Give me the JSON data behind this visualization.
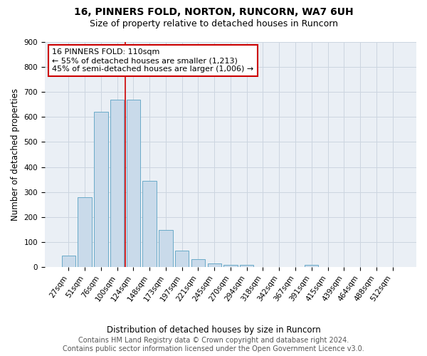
{
  "title": "16, PINNERS FOLD, NORTON, RUNCORN, WA7 6UH",
  "subtitle": "Size of property relative to detached houses in Runcorn",
  "xlabel": "Distribution of detached houses by size in Runcorn",
  "ylabel": "Number of detached properties",
  "footer_line1": "Contains HM Land Registry data © Crown copyright and database right 2024.",
  "footer_line2": "Contains public sector information licensed under the Open Government Licence v3.0.",
  "categories": [
    "27sqm",
    "51sqm",
    "76sqm",
    "100sqm",
    "124sqm",
    "148sqm",
    "173sqm",
    "197sqm",
    "221sqm",
    "245sqm",
    "270sqm",
    "294sqm",
    "318sqm",
    "342sqm",
    "367sqm",
    "391sqm",
    "415sqm",
    "439sqm",
    "464sqm",
    "488sqm",
    "512sqm"
  ],
  "values": [
    45,
    280,
    620,
    670,
    670,
    345,
    148,
    65,
    32,
    15,
    10,
    10,
    0,
    0,
    0,
    10,
    0,
    0,
    0,
    0,
    0
  ],
  "bar_color": "#c9daea",
  "bar_edge_color": "#6aaac8",
  "grid_color": "#ccd5e0",
  "background_color": "#eaeff5",
  "vline_x_index": 3.5,
  "vline_color": "#cc0000",
  "annotation_line1": "16 PINNERS FOLD: 110sqm",
  "annotation_line2": "← 55% of detached houses are smaller (1,213)",
  "annotation_line3": "45% of semi-detached houses are larger (1,006) →",
  "annotation_box_color": "#ffffff",
  "annotation_border_color": "#cc0000",
  "ylim": [
    0,
    900
  ],
  "yticks": [
    0,
    100,
    200,
    300,
    400,
    500,
    600,
    700,
    800,
    900
  ],
  "title_fontsize": 10,
  "subtitle_fontsize": 9,
  "xlabel_fontsize": 8.5,
  "ylabel_fontsize": 8.5,
  "tick_fontsize": 7.5,
  "annotation_fontsize": 8,
  "footer_fontsize": 7
}
